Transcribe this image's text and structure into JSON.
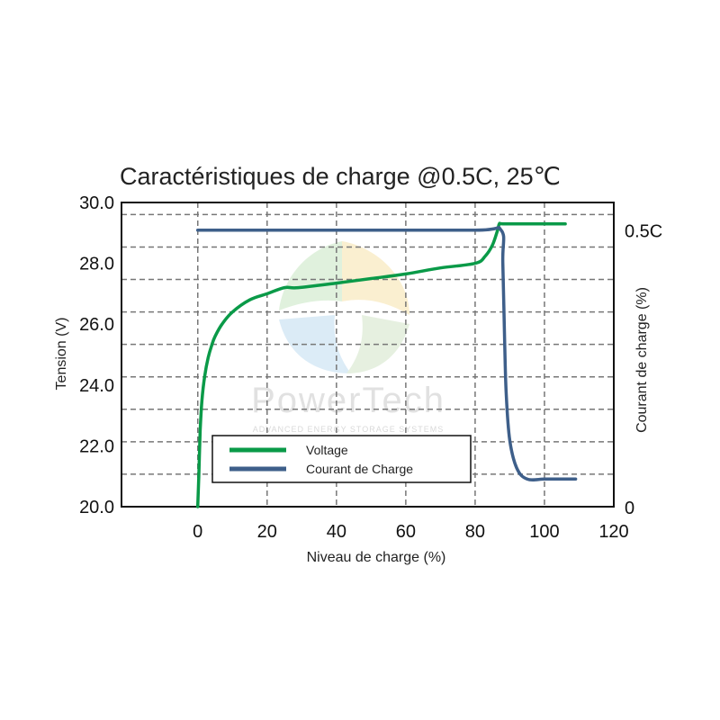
{
  "chart_data": {
    "type": "line",
    "title": "Caractéristiques de charge @0.5C, 25℃",
    "xlabel": "Niveau de charge (%)",
    "ylabel_left": "Tension (V)",
    "ylabel_right": "Courant de charge (%)",
    "x_ticks": [
      "0",
      "20",
      "40",
      "60",
      "80",
      "100",
      "120"
    ],
    "y_left_ticks": [
      "20.0",
      "22.0",
      "24.0",
      "26.0",
      "28.0",
      "30.0"
    ],
    "y_right_ticks": [
      "0",
      "0.5C"
    ],
    "xlim": [
      -22,
      120
    ],
    "ylim_left": [
      20.0,
      30.0
    ],
    "ylim_right": [
      0,
      0.55
    ],
    "grid": true,
    "legend_position": "bottom-left",
    "series": [
      {
        "name": "Voltage",
        "axis": "left",
        "color": "#0a9a48",
        "x": [
          0,
          0.3,
          0.7,
          1.2,
          2,
          3,
          4,
          5,
          7,
          10,
          15,
          20,
          25,
          29,
          40,
          50,
          60,
          70,
          80,
          83,
          85,
          86.5,
          87,
          88,
          95,
          100,
          106
        ],
        "y": [
          20.0,
          21.0,
          22.5,
          23.5,
          24.3,
          24.9,
          25.3,
          25.6,
          26.0,
          26.4,
          26.8,
          27.0,
          27.2,
          27.2,
          27.35,
          27.5,
          27.65,
          27.85,
          28.0,
          28.25,
          28.6,
          29.1,
          29.3,
          29.3,
          29.3,
          29.3,
          29.3
        ]
      },
      {
        "name": "Courant de Charge",
        "axis": "right",
        "color": "#3e5f8a",
        "x": [
          0,
          40,
          80,
          87.5,
          88,
          88.5,
          89,
          90,
          92,
          95,
          100,
          104,
          109
        ],
        "y": [
          0.5,
          0.5,
          0.5,
          0.5,
          0.44,
          0.3,
          0.2,
          0.12,
          0.07,
          0.05,
          0.05,
          0.05,
          0.05
        ]
      }
    ]
  },
  "watermark": {
    "logo_text": "PowerTech",
    "tagline": "ADVANCED ENERGY STORAGE SYSTEMS"
  }
}
